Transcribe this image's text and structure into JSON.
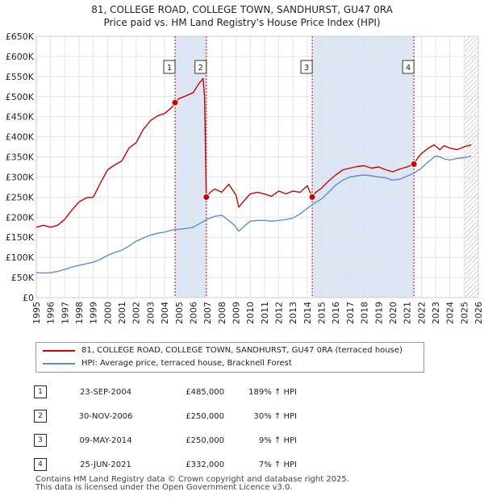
{
  "title_line1": "81, COLLEGE ROAD, COLLEGE TOWN, SANDHURST, GU47 0RA",
  "title_line2": "Price paid vs. HM Land Registry's House Price Index (HPI)",
  "colors": {
    "property": "#cc0000",
    "hpi": "#5b8fcf",
    "shade": "#dde6f5",
    "grid": "#e3e3e3",
    "marker_line": "#cc0000"
  },
  "legend": {
    "property_label": "81, COLLEGE ROAD, COLLEGE TOWN, SANDHURST, GU47 0RA (terraced house)",
    "hpi_label": "HPI: Average price, terraced house, Bracknell Forest"
  },
  "sales": [
    {
      "num": "1",
      "date": "23-SEP-2004",
      "price": "£485,000",
      "hpi": "189% ↑ HPI"
    },
    {
      "num": "2",
      "date": "30-NOV-2006",
      "price": "£250,000",
      "hpi": "30% ↑ HPI"
    },
    {
      "num": "3",
      "date": "09-MAY-2014",
      "price": "£250,000",
      "hpi": "9% ↑ HPI"
    },
    {
      "num": "4",
      "date": "25-JUN-2021",
      "price": "£332,000",
      "hpi": "7% ↑ HPI"
    }
  ],
  "footer": {
    "line1": "Contains HM Land Registry data © Crown copyright and database right 2025.",
    "line2": "This data is licensed under the Open Government Licence v3.0."
  },
  "chart_data": {
    "type": "line",
    "title": "81, COLLEGE ROAD, COLLEGE TOWN, SANDHURST, GU47 0RA — Price paid vs. HM Land Registry's House Price Index (HPI)",
    "xlabel": "",
    "ylabel": "",
    "xlim": [
      1995,
      2026
    ],
    "ylim": [
      0,
      650000
    ],
    "x_ticks": [
      "1995",
      "1996",
      "1997",
      "1998",
      "1999",
      "2000",
      "2001",
      "2002",
      "2003",
      "2004",
      "2005",
      "2006",
      "2007",
      "2008",
      "2009",
      "2010",
      "2011",
      "2012",
      "2013",
      "2014",
      "2015",
      "2016",
      "2017",
      "2018",
      "2019",
      "2020",
      "2021",
      "2022",
      "2023",
      "2024",
      "2025",
      "2026"
    ],
    "y_ticks": [
      {
        "value": 0,
        "label": "£0"
      },
      {
        "value": 50000,
        "label": "£50K"
      },
      {
        "value": 100000,
        "label": "£100K"
      },
      {
        "value": 150000,
        "label": "£150K"
      },
      {
        "value": 200000,
        "label": "£200K"
      },
      {
        "value": 250000,
        "label": "£250K"
      },
      {
        "value": 300000,
        "label": "£300K"
      },
      {
        "value": 350000,
        "label": "£350K"
      },
      {
        "value": 400000,
        "label": "£400K"
      },
      {
        "value": 450000,
        "label": "£450K"
      },
      {
        "value": 500000,
        "label": "£500K"
      },
      {
        "value": 550000,
        "label": "£550K"
      },
      {
        "value": 600000,
        "label": "£600K"
      },
      {
        "value": 650000,
        "label": "£650K"
      }
    ],
    "shaded_periods": [
      [
        2004.73,
        2006.92
      ],
      [
        2014.35,
        2021.48
      ]
    ],
    "hatched_after": 2025.0,
    "series": [
      {
        "name": "81, COLLEGE ROAD, COLLEGE TOWN, SANDHURST, GU47 0RA (terraced house)",
        "color": "#cc0000",
        "x": [
          1995.0,
          1995.5,
          1996.0,
          1996.5,
          1997.0,
          1997.5,
          1998.0,
          1998.5,
          1999.0,
          1999.5,
          2000.0,
          2000.5,
          2001.0,
          2001.5,
          2002.0,
          2002.5,
          2003.0,
          2003.5,
          2004.0,
          2004.5,
          2004.73,
          2005.0,
          2005.5,
          2006.0,
          2006.4,
          2006.7,
          2006.8,
          2006.92,
          2007.2,
          2007.5,
          2008.0,
          2008.5,
          2009.0,
          2009.2,
          2009.5,
          2010.0,
          2010.5,
          2011.0,
          2011.5,
          2012.0,
          2012.5,
          2013.0,
          2013.5,
          2014.0,
          2014.35,
          2014.6,
          2015.0,
          2015.5,
          2016.0,
          2016.5,
          2017.0,
          2017.5,
          2018.0,
          2018.5,
          2019.0,
          2019.5,
          2020.0,
          2020.5,
          2021.0,
          2021.48,
          2021.8,
          2022.0,
          2022.5,
          2022.9,
          2023.3,
          2023.6,
          2024.0,
          2024.5,
          2025.0,
          2025.5
        ],
        "values": [
          175000,
          180000,
          175000,
          180000,
          195000,
          218000,
          238000,
          248000,
          250000,
          285000,
          318000,
          330000,
          340000,
          372000,
          385000,
          418000,
          440000,
          452000,
          458000,
          473000,
          485000,
          495000,
          502000,
          510000,
          532000,
          545000,
          500000,
          250000,
          262000,
          270000,
          262000,
          282000,
          255000,
          225000,
          238000,
          258000,
          262000,
          258000,
          252000,
          265000,
          258000,
          265000,
          262000,
          278000,
          250000,
          262000,
          272000,
          290000,
          305000,
          318000,
          322000,
          326000,
          328000,
          322000,
          325000,
          318000,
          313000,
          320000,
          325000,
          332000,
          350000,
          358000,
          372000,
          380000,
          368000,
          378000,
          372000,
          368000,
          375000,
          380000
        ]
      },
      {
        "name": "HPI: Average price, terraced house, Bracknell Forest",
        "color": "#5b8fcf",
        "x": [
          1995.0,
          1995.5,
          1996.0,
          1996.5,
          1997.0,
          1997.5,
          1998.0,
          1998.5,
          1999.0,
          1999.5,
          2000.0,
          2000.5,
          2001.0,
          2001.5,
          2002.0,
          2002.5,
          2003.0,
          2003.5,
          2004.0,
          2004.5,
          2005.0,
          2005.5,
          2006.0,
          2006.5,
          2007.0,
          2007.5,
          2008.0,
          2008.5,
          2008.9,
          2009.2,
          2009.5,
          2010.0,
          2010.5,
          2011.0,
          2011.5,
          2012.0,
          2012.5,
          2013.0,
          2013.5,
          2014.0,
          2014.5,
          2015.0,
          2015.5,
          2016.0,
          2016.5,
          2017.0,
          2017.5,
          2018.0,
          2018.5,
          2019.0,
          2019.5,
          2020.0,
          2020.5,
          2021.0,
          2021.5,
          2022.0,
          2022.5,
          2023.0,
          2023.3,
          2023.6,
          2024.0,
          2024.5,
          2025.0,
          2025.5
        ],
        "values": [
          62000,
          61000,
          62000,
          65000,
          70000,
          76000,
          80000,
          84000,
          88000,
          95000,
          105000,
          112000,
          118000,
          128000,
          140000,
          148000,
          155000,
          160000,
          163000,
          168000,
          170000,
          172000,
          175000,
          185000,
          195000,
          202000,
          205000,
          192000,
          180000,
          165000,
          175000,
          190000,
          192000,
          192000,
          190000,
          192000,
          194000,
          198000,
          208000,
          222000,
          235000,
          245000,
          262000,
          280000,
          292000,
          300000,
          303000,
          305000,
          303000,
          300000,
          298000,
          292000,
          295000,
          302000,
          310000,
          322000,
          338000,
          352000,
          350000,
          345000,
          342000,
          346000,
          348000,
          352000
        ]
      }
    ],
    "sale_points": [
      {
        "label": "1",
        "x": 2004.73,
        "y": 485000
      },
      {
        "label": "2",
        "x": 2006.92,
        "y": 250000
      },
      {
        "label": "3",
        "x": 2014.35,
        "y": 250000
      },
      {
        "label": "4",
        "x": 2021.48,
        "y": 332000
      }
    ]
  }
}
